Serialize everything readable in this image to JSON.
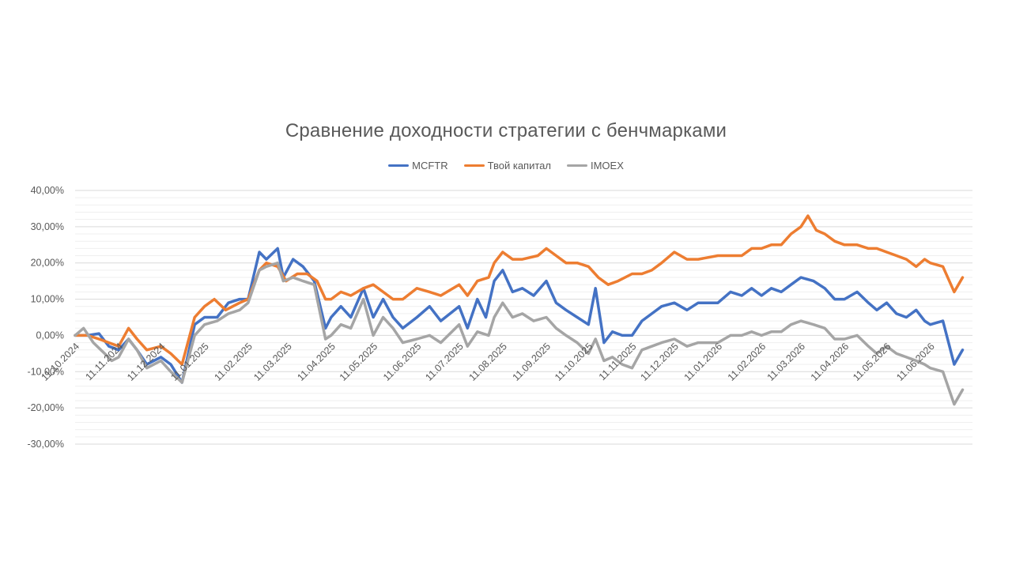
{
  "chart_data": {
    "type": "line",
    "title": "Сравнение доходности стратегии с бенчмарками",
    "legend_position": "top",
    "grid": true,
    "ylim": [
      -30,
      40
    ],
    "yticks": [
      {
        "value": 40,
        "label": "40,00%"
      },
      {
        "value": 30,
        "label": "30,00%"
      },
      {
        "value": 20,
        "label": "20,00%"
      },
      {
        "value": 10,
        "label": "10,00%"
      },
      {
        "value": 0,
        "label": "0,00%"
      },
      {
        "value": -10,
        "label": "-10,00%"
      },
      {
        "value": -20,
        "label": "-20,00%"
      },
      {
        "value": -30,
        "label": "-30,00%"
      }
    ],
    "xlim": [
      "11.10.2024",
      "11.07.2026"
    ],
    "xticks": [
      "11.10.2024",
      "11.11.2024",
      "11.12.2024",
      "11.01.2025",
      "11.02.2025",
      "11.03.2025",
      "11.04.2025",
      "11.05.2025",
      "11.06.2025",
      "11.07.2025",
      "11.08.2025",
      "11.09.2025",
      "11.10.2025",
      "11.11.2025",
      "11.12.2025",
      "11.01.2026",
      "11.02.2026",
      "11.03.2026",
      "11.04.2026",
      "11.05.2026",
      "11.06.2026"
    ],
    "series": [
      {
        "name": "MCFTR",
        "color": "#4472C4",
        "points": [
          [
            "11.10.2024",
            0
          ],
          [
            "20.10.2024",
            0
          ],
          [
            "28.10.2024",
            0.5
          ],
          [
            "04.11.2024",
            -3
          ],
          [
            "11.11.2024",
            -4
          ],
          [
            "18.11.2024",
            -1
          ],
          [
            "24.11.2024",
            -4
          ],
          [
            "01.12.2024",
            -8
          ],
          [
            "11.12.2024",
            -6
          ],
          [
            "18.12.2024",
            -8
          ],
          [
            "26.12.2024",
            -13
          ],
          [
            "04.01.2025",
            3
          ],
          [
            "11.01.2025",
            5
          ],
          [
            "20.01.2025",
            5
          ],
          [
            "28.01.2025",
            9
          ],
          [
            "05.02.2025",
            10
          ],
          [
            "11.02.2025",
            10
          ],
          [
            "19.02.2025",
            23
          ],
          [
            "24.02.2025",
            21
          ],
          [
            "04.03.2025",
            24
          ],
          [
            "08.03.2025",
            16
          ],
          [
            "15.03.2025",
            21
          ],
          [
            "22.03.2025",
            19
          ],
          [
            "30.03.2025",
            15
          ],
          [
            "07.04.2025",
            2
          ],
          [
            "11.04.2025",
            5
          ],
          [
            "18.04.2025",
            8
          ],
          [
            "25.04.2025",
            5
          ],
          [
            "04.05.2025",
            13
          ],
          [
            "11.05.2025",
            5
          ],
          [
            "18.05.2025",
            10
          ],
          [
            "25.05.2025",
            5
          ],
          [
            "01.06.2025",
            2
          ],
          [
            "11.06.2025",
            5
          ],
          [
            "20.06.2025",
            8
          ],
          [
            "28.06.2025",
            4
          ],
          [
            "11.07.2025",
            8
          ],
          [
            "17.07.2025",
            2
          ],
          [
            "24.07.2025",
            10
          ],
          [
            "30.07.2025",
            5
          ],
          [
            "05.08.2025",
            15
          ],
          [
            "11.08.2025",
            18
          ],
          [
            "18.08.2025",
            12
          ],
          [
            "25.08.2025",
            13
          ],
          [
            "02.09.2025",
            11
          ],
          [
            "11.09.2025",
            15
          ],
          [
            "18.09.2025",
            9
          ],
          [
            "25.09.2025",
            7
          ],
          [
            "03.10.2025",
            5
          ],
          [
            "11.10.2025",
            3
          ],
          [
            "16.10.2025",
            13
          ],
          [
            "22.10.2025",
            -2
          ],
          [
            "28.10.2025",
            1
          ],
          [
            "04.11.2025",
            0
          ],
          [
            "11.11.2025",
            0
          ],
          [
            "18.11.2025",
            4
          ],
          [
            "25.11.2025",
            6
          ],
          [
            "02.12.2025",
            8
          ],
          [
            "11.12.2025",
            9
          ],
          [
            "20.12.2025",
            7
          ],
          [
            "28.12.2025",
            9
          ],
          [
            "11.01.2026",
            9
          ],
          [
            "20.01.2026",
            12
          ],
          [
            "28.01.2026",
            11
          ],
          [
            "04.02.2026",
            13
          ],
          [
            "11.02.2026",
            11
          ],
          [
            "18.02.2026",
            13
          ],
          [
            "25.02.2026",
            12
          ],
          [
            "04.03.2026",
            14
          ],
          [
            "11.03.2026",
            16
          ],
          [
            "20.03.2026",
            15
          ],
          [
            "28.03.2026",
            13
          ],
          [
            "04.04.2026",
            10
          ],
          [
            "11.04.2026",
            10
          ],
          [
            "20.04.2026",
            12
          ],
          [
            "28.04.2026",
            9
          ],
          [
            "04.05.2026",
            7
          ],
          [
            "11.05.2026",
            9
          ],
          [
            "18.05.2026",
            6
          ],
          [
            "25.05.2026",
            5
          ],
          [
            "01.06.2026",
            7
          ],
          [
            "07.06.2026",
            4
          ],
          [
            "11.06.2026",
            3
          ],
          [
            "20.06.2026",
            4
          ],
          [
            "28.06.2026",
            -8
          ],
          [
            "04.07.2026",
            -4
          ]
        ]
      },
      {
        "name": "Твой капитал",
        "color": "#ED7D31",
        "points": [
          [
            "11.10.2024",
            0
          ],
          [
            "20.10.2024",
            0
          ],
          [
            "28.10.2024",
            -1
          ],
          [
            "04.11.2024",
            -2
          ],
          [
            "11.11.2024",
            -3
          ],
          [
            "18.11.2024",
            2
          ],
          [
            "24.11.2024",
            -1
          ],
          [
            "01.12.2024",
            -4
          ],
          [
            "11.12.2024",
            -3
          ],
          [
            "18.12.2024",
            -5
          ],
          [
            "26.12.2024",
            -8
          ],
          [
            "04.01.2025",
            5
          ],
          [
            "11.01.2025",
            8
          ],
          [
            "18.01.2025",
            10
          ],
          [
            "26.01.2025",
            7
          ],
          [
            "05.02.2025",
            9
          ],
          [
            "11.02.2025",
            10
          ],
          [
            "19.02.2025",
            18
          ],
          [
            "24.02.2025",
            20
          ],
          [
            "04.03.2025",
            19
          ],
          [
            "10.03.2025",
            15
          ],
          [
            "18.03.2025",
            17
          ],
          [
            "25.03.2025",
            17
          ],
          [
            "01.04.2025",
            15
          ],
          [
            "07.04.2025",
            10
          ],
          [
            "11.04.2025",
            10
          ],
          [
            "18.04.2025",
            12
          ],
          [
            "25.04.2025",
            11
          ],
          [
            "04.05.2025",
            13
          ],
          [
            "11.05.2025",
            14
          ],
          [
            "18.05.2025",
            12
          ],
          [
            "25.05.2025",
            10
          ],
          [
            "01.06.2025",
            10
          ],
          [
            "11.06.2025",
            13
          ],
          [
            "20.06.2025",
            12
          ],
          [
            "28.06.2025",
            11
          ],
          [
            "11.07.2025",
            14
          ],
          [
            "17.07.2025",
            11
          ],
          [
            "24.07.2025",
            15
          ],
          [
            "01.08.2025",
            16
          ],
          [
            "05.08.2025",
            20
          ],
          [
            "11.08.2025",
            23
          ],
          [
            "18.08.2025",
            21
          ],
          [
            "25.08.2025",
            21
          ],
          [
            "05.09.2025",
            22
          ],
          [
            "11.09.2025",
            24
          ],
          [
            "18.09.2025",
            22
          ],
          [
            "25.09.2025",
            20
          ],
          [
            "03.10.2025",
            20
          ],
          [
            "11.10.2025",
            19
          ],
          [
            "18.10.2025",
            16
          ],
          [
            "25.10.2025",
            14
          ],
          [
            "01.11.2025",
            15
          ],
          [
            "11.11.2025",
            17
          ],
          [
            "18.11.2025",
            17
          ],
          [
            "25.11.2025",
            18
          ],
          [
            "02.12.2025",
            20
          ],
          [
            "11.12.2025",
            23
          ],
          [
            "20.12.2025",
            21
          ],
          [
            "28.12.2025",
            21
          ],
          [
            "11.01.2026",
            22
          ],
          [
            "20.01.2026",
            22
          ],
          [
            "28.01.2026",
            22
          ],
          [
            "04.02.2026",
            24
          ],
          [
            "11.02.2026",
            24
          ],
          [
            "18.02.2026",
            25
          ],
          [
            "25.02.2026",
            25
          ],
          [
            "04.03.2026",
            28
          ],
          [
            "11.03.2026",
            30
          ],
          [
            "16.03.2026",
            33
          ],
          [
            "22.03.2026",
            29
          ],
          [
            "28.03.2026",
            28
          ],
          [
            "04.04.2026",
            26
          ],
          [
            "11.04.2026",
            25
          ],
          [
            "20.04.2026",
            25
          ],
          [
            "28.04.2026",
            24
          ],
          [
            "04.05.2026",
            24
          ],
          [
            "11.05.2026",
            23
          ],
          [
            "18.05.2026",
            22
          ],
          [
            "25.05.2026",
            21
          ],
          [
            "01.06.2026",
            19
          ],
          [
            "07.06.2026",
            21
          ],
          [
            "11.06.2026",
            20
          ],
          [
            "20.06.2026",
            19
          ],
          [
            "28.06.2026",
            12
          ],
          [
            "04.07.2026",
            16
          ]
        ]
      },
      {
        "name": "IMOEX",
        "color": "#A5A5A5",
        "points": [
          [
            "11.10.2024",
            0
          ],
          [
            "17.10.2024",
            2
          ],
          [
            "24.10.2024",
            -2
          ],
          [
            "01.11.2024",
            -5
          ],
          [
            "06.11.2024",
            -7
          ],
          [
            "11.11.2024",
            -6
          ],
          [
            "18.11.2024",
            -1
          ],
          [
            "24.11.2024",
            -4
          ],
          [
            "01.12.2024",
            -9
          ],
          [
            "11.12.2024",
            -7
          ],
          [
            "18.12.2024",
            -10
          ],
          [
            "26.12.2024",
            -13
          ],
          [
            "04.01.2025",
            0
          ],
          [
            "11.01.2025",
            3
          ],
          [
            "20.01.2025",
            4
          ],
          [
            "28.01.2025",
            6
          ],
          [
            "05.02.2025",
            7
          ],
          [
            "11.02.2025",
            9
          ],
          [
            "19.02.2025",
            18
          ],
          [
            "24.02.2025",
            19
          ],
          [
            "04.03.2025",
            20
          ],
          [
            "08.03.2025",
            15
          ],
          [
            "15.03.2025",
            16
          ],
          [
            "22.03.2025",
            15
          ],
          [
            "30.03.2025",
            14
          ],
          [
            "07.04.2025",
            -1
          ],
          [
            "11.04.2025",
            0
          ],
          [
            "18.04.2025",
            3
          ],
          [
            "25.04.2025",
            2
          ],
          [
            "04.05.2025",
            10
          ],
          [
            "11.05.2025",
            0
          ],
          [
            "18.05.2025",
            5
          ],
          [
            "25.05.2025",
            2
          ],
          [
            "01.06.2025",
            -2
          ],
          [
            "11.06.2025",
            -1
          ],
          [
            "20.06.2025",
            0
          ],
          [
            "28.06.2025",
            -2
          ],
          [
            "11.07.2025",
            3
          ],
          [
            "17.07.2025",
            -3
          ],
          [
            "24.07.2025",
            1
          ],
          [
            "01.08.2025",
            0
          ],
          [
            "05.08.2025",
            5
          ],
          [
            "11.08.2025",
            9
          ],
          [
            "18.08.2025",
            5
          ],
          [
            "25.08.2025",
            6
          ],
          [
            "02.09.2025",
            4
          ],
          [
            "11.09.2025",
            5
          ],
          [
            "18.09.2025",
            2
          ],
          [
            "25.09.2025",
            0
          ],
          [
            "03.10.2025",
            -2
          ],
          [
            "11.10.2025",
            -5
          ],
          [
            "16.10.2025",
            -1
          ],
          [
            "22.10.2025",
            -7
          ],
          [
            "28.10.2025",
            -6
          ],
          [
            "04.11.2025",
            -8
          ],
          [
            "11.11.2025",
            -9
          ],
          [
            "18.11.2025",
            -4
          ],
          [
            "25.11.2025",
            -3
          ],
          [
            "02.12.2025",
            -2
          ],
          [
            "11.12.2025",
            -1
          ],
          [
            "20.12.2025",
            -3
          ],
          [
            "28.12.2025",
            -2
          ],
          [
            "11.01.2026",
            -2
          ],
          [
            "20.01.2026",
            0
          ],
          [
            "28.01.2026",
            0
          ],
          [
            "04.02.2026",
            1
          ],
          [
            "11.02.2026",
            0
          ],
          [
            "18.02.2026",
            1
          ],
          [
            "25.02.2026",
            1
          ],
          [
            "04.03.2026",
            3
          ],
          [
            "11.03.2026",
            4
          ],
          [
            "20.03.2026",
            3
          ],
          [
            "28.03.2026",
            2
          ],
          [
            "04.04.2026",
            -1
          ],
          [
            "11.04.2026",
            -1
          ],
          [
            "20.04.2026",
            0
          ],
          [
            "28.04.2026",
            -3
          ],
          [
            "04.05.2026",
            -5
          ],
          [
            "11.05.2026",
            -3
          ],
          [
            "18.05.2026",
            -5
          ],
          [
            "25.05.2026",
            -6
          ],
          [
            "01.06.2026",
            -7
          ],
          [
            "07.06.2026",
            -8
          ],
          [
            "11.06.2026",
            -9
          ],
          [
            "20.06.2026",
            -10
          ],
          [
            "28.06.2026",
            -19
          ],
          [
            "04.07.2026",
            -15
          ]
        ]
      }
    ]
  }
}
